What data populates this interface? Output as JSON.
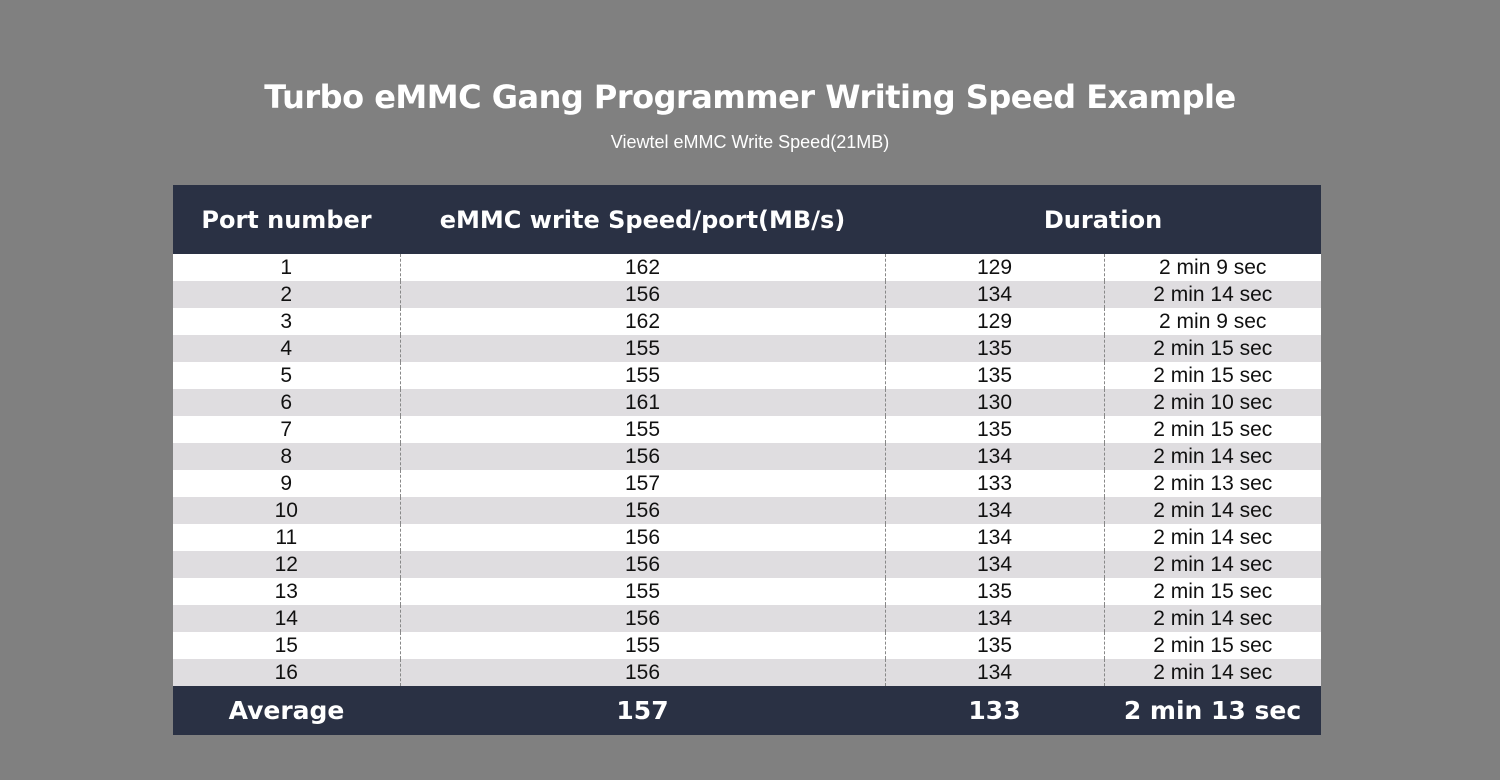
{
  "title": "Turbo eMMC Gang Programmer Writing Speed Example",
  "subtitle": "Viewtel eMMC Write Speed(21MB)",
  "headers": {
    "port": "Port number",
    "speed": "eMMC write Speed/port(MB/s)",
    "duration": "Duration"
  },
  "rows": [
    [
      "1",
      "162",
      "129",
      "2 min 9 sec"
    ],
    [
      "2",
      "156",
      "134",
      "2 min 14 sec"
    ],
    [
      "3",
      "162",
      "129",
      "2 min 9 sec"
    ],
    [
      "4",
      "155",
      "135",
      "2 min 15 sec"
    ],
    [
      "5",
      "155",
      "135",
      "2 min 15 sec"
    ],
    [
      "6",
      "161",
      "130",
      "2 min 10 sec"
    ],
    [
      "7",
      "155",
      "135",
      "2 min 15 sec"
    ],
    [
      "8",
      "156",
      "134",
      "2 min 14 sec"
    ],
    [
      "9",
      "157",
      "133",
      "2 min 13 sec"
    ],
    [
      "10",
      "156",
      "134",
      "2 min 14 sec"
    ],
    [
      "11",
      "156",
      "134",
      "2 min 14 sec"
    ],
    [
      "12",
      "156",
      "134",
      "2 min 14 sec"
    ],
    [
      "13",
      "155",
      "135",
      "2 min 15 sec"
    ],
    [
      "14",
      "156",
      "134",
      "2 min 14 sec"
    ],
    [
      "15",
      "155",
      "135",
      "2 min 15 sec"
    ],
    [
      "16",
      "156",
      "134",
      "2 min 14 sec"
    ]
  ],
  "average": [
    "Average",
    "157",
    "133",
    "2 min 13 sec"
  ]
}
